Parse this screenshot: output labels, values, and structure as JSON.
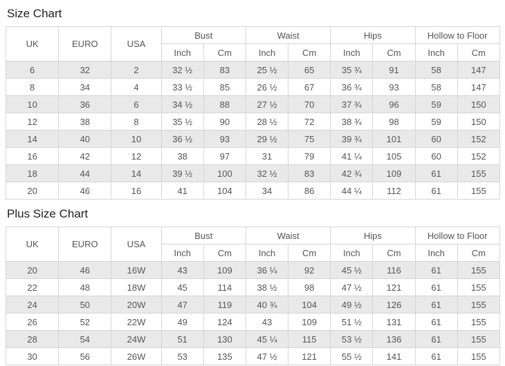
{
  "colors": {
    "row_stripe": "#e9e9e9",
    "table_border": "#d5d5d5",
    "cell_text": "#555555",
    "title_text": "#1f1f1f"
  },
  "chart_data": [
    {
      "type": "table",
      "title": "Size Chart",
      "columns": {
        "simple": [
          "UK",
          "EURO",
          "USA"
        ],
        "groups": [
          "Bust",
          "Waist",
          "Hips",
          "Hollow to Floor"
        ],
        "subs": [
          "Inch",
          "Cm"
        ]
      },
      "rows": [
        [
          "6",
          "32",
          "2",
          "32 ½",
          "83",
          "25 ½",
          "65",
          "35 ¾",
          "91",
          "58",
          "147"
        ],
        [
          "8",
          "34",
          "4",
          "33 ½",
          "85",
          "26 ½",
          "67",
          "36 ¾",
          "93",
          "58",
          "147"
        ],
        [
          "10",
          "36",
          "6",
          "34 ½",
          "88",
          "27 ½",
          "70",
          "37 ¾",
          "96",
          "59",
          "150"
        ],
        [
          "12",
          "38",
          "8",
          "35 ½",
          "90",
          "28 ½",
          "72",
          "38 ¾",
          "98",
          "59",
          "150"
        ],
        [
          "14",
          "40",
          "10",
          "36 ½",
          "93",
          "29 ½",
          "75",
          "39 ¾",
          "101",
          "60",
          "152"
        ],
        [
          "16",
          "42",
          "12",
          "38",
          "97",
          "31",
          "79",
          "41 ¼",
          "105",
          "60",
          "152"
        ],
        [
          "18",
          "44",
          "14",
          "39 ½",
          "100",
          "32 ½",
          "83",
          "42 ¾",
          "109",
          "61",
          "155"
        ],
        [
          "20",
          "46",
          "16",
          "41",
          "104",
          "34",
          "86",
          "44 ¼",
          "112",
          "61",
          "155"
        ]
      ]
    },
    {
      "type": "table",
      "title": "Plus Size Chart",
      "columns": {
        "simple": [
          "UK",
          "EURO",
          "USA"
        ],
        "groups": [
          "Bust",
          "Waist",
          "Hips",
          "Hollow to Floor"
        ],
        "subs": [
          "Inch",
          "Cm"
        ]
      },
      "rows": [
        [
          "20",
          "46",
          "16W",
          "43",
          "109",
          "36 ¼",
          "92",
          "45 ½",
          "116",
          "61",
          "155"
        ],
        [
          "22",
          "48",
          "18W",
          "45",
          "114",
          "38 ½",
          "98",
          "47 ½",
          "121",
          "61",
          "155"
        ],
        [
          "24",
          "50",
          "20W",
          "47",
          "119",
          "40 ¾",
          "104",
          "49 ½",
          "126",
          "61",
          "155"
        ],
        [
          "26",
          "52",
          "22W",
          "49",
          "124",
          "43",
          "109",
          "51 ½",
          "131",
          "61",
          "155"
        ],
        [
          "28",
          "54",
          "24W",
          "51",
          "130",
          "45 ¼",
          "115",
          "53 ½",
          "136",
          "61",
          "155"
        ],
        [
          "30",
          "56",
          "26W",
          "53",
          "135",
          "47 ½",
          "121",
          "55 ½",
          "141",
          "61",
          "155"
        ]
      ]
    }
  ]
}
